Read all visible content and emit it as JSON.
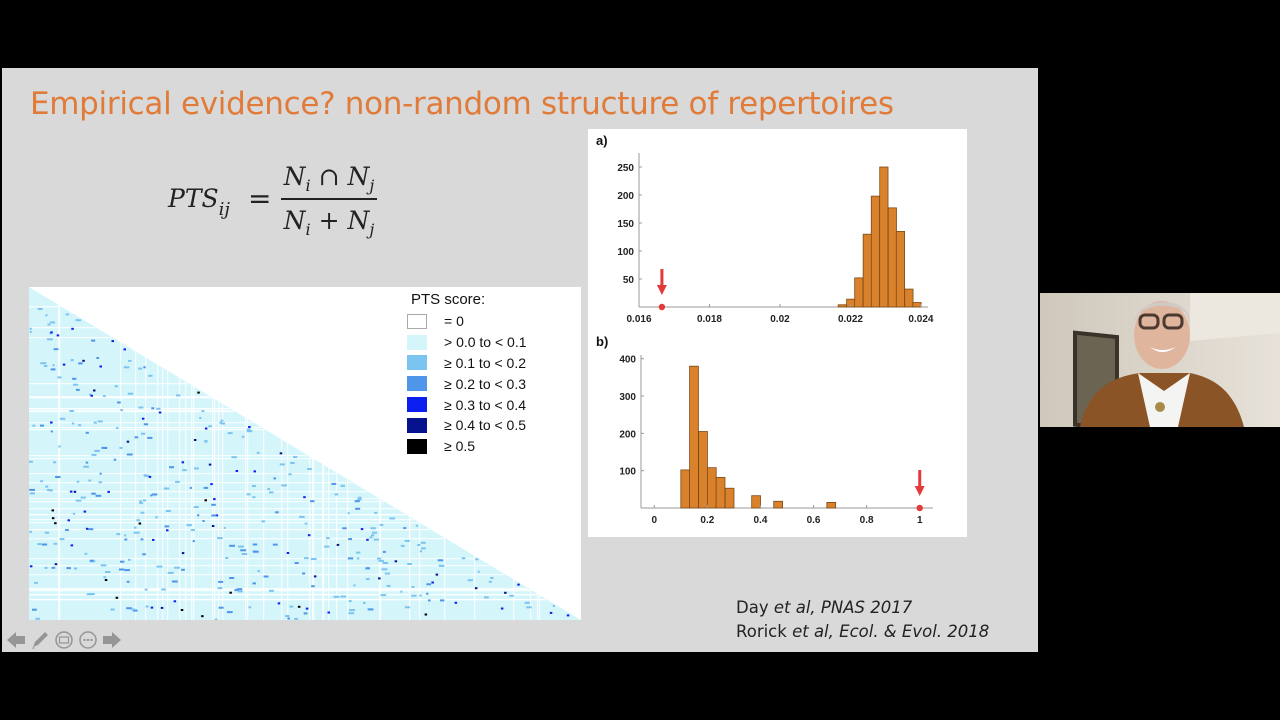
{
  "slide": {
    "title": "Empirical evidence?  non-random structure of repertoires",
    "title_color": "#e07b39",
    "background": "#d9d9d9",
    "formula": {
      "lhs": "PTS",
      "lhs_sub": "ij",
      "equals": "=",
      "numerator": {
        "a": "N",
        "a_sub": "i",
        "op": "∩",
        "b": "N",
        "b_sub": "j"
      },
      "denominator": {
        "a": "N",
        "a_sub": "i",
        "op": "+",
        "b": "N",
        "b_sub": "j"
      }
    },
    "heatmap": {
      "description": "Lower-triangular pairwise PTS score matrix",
      "legend": {
        "title": "PTS score:",
        "items": [
          {
            "label": "= 0",
            "color": "#ffffff"
          },
          {
            "label": "> 0.0 to < 0.1",
            "color": "#d4f6fb"
          },
          {
            "label": "≥ 0.1 to < 0.2",
            "color": "#7cc4f0"
          },
          {
            "label": "≥ 0.2 to < 0.3",
            "color": "#4f95ea"
          },
          {
            "label": "≥ 0.3 to < 0.4",
            "color": "#0a1ff0"
          },
          {
            "label": "≥ 0.4 to < 0.5",
            "color": "#06128e"
          },
          {
            "label": "≥ 0.5",
            "color": "#000000"
          }
        ]
      }
    },
    "citations": [
      {
        "author": "Day",
        "etal": "et al,",
        "journal": "PNAS 2017"
      },
      {
        "author": "Rorick",
        "etal": "et al,",
        "journal": "Ecol. & Evol. 2018"
      }
    ],
    "nav": {
      "prev": "previous-slide",
      "pen": "pen-tool",
      "slides": "see-all-slides",
      "more": "more-options",
      "next": "next-slide"
    }
  },
  "chart_data": [
    {
      "panel": "a)",
      "type": "bar",
      "title": "",
      "xlabel": "",
      "ylabel": "",
      "xlim": [
        0.016,
        0.0242
      ],
      "ylim": [
        0,
        275
      ],
      "xticks": [
        "0.016",
        "0.018",
        "0.02",
        "0.022",
        "0.024"
      ],
      "yticks": [
        "50",
        "100",
        "150",
        "200",
        "250"
      ],
      "bar_color": "#d9822b",
      "bins": [
        0.02165,
        0.02189,
        0.02212,
        0.02236,
        0.02259,
        0.02283,
        0.02307,
        0.0233,
        0.02354,
        0.02377
      ],
      "bin_width": 0.000236,
      "values": [
        4,
        14,
        52,
        130,
        198,
        250,
        177,
        135,
        32,
        8
      ],
      "observed_marker": {
        "x": 0.01665,
        "color": "#e23a3a",
        "arrow": true
      },
      "grid": false
    },
    {
      "panel": "b)",
      "type": "bar",
      "title": "",
      "xlabel": "",
      "ylabel": "",
      "xlim": [
        -0.05,
        1.05
      ],
      "ylim": [
        0,
        410
      ],
      "xticks": [
        "0",
        "0.2",
        "0.4",
        "0.6",
        "0.8",
        "1"
      ],
      "yticks": [
        "100",
        "200",
        "300",
        "400"
      ],
      "bar_color": "#d9822b",
      "bins": [
        0.1,
        0.133,
        0.167,
        0.2,
        0.233,
        0.267,
        0.3,
        0.367,
        0.45,
        0.65
      ],
      "bin_width": 0.0333,
      "values": [
        102,
        380,
        205,
        108,
        82,
        53,
        0,
        33,
        18,
        15
      ],
      "observed_marker": {
        "x": 1.0,
        "color": "#e23a3a",
        "arrow": true
      },
      "grid": false
    }
  ]
}
